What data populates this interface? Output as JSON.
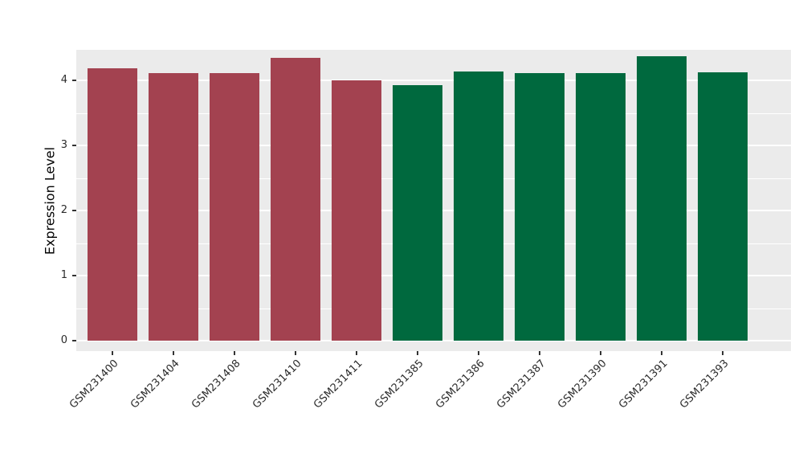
{
  "chart_data": {
    "type": "bar",
    "title": "",
    "xlabel": "",
    "ylabel": "Expression Level",
    "categories": [
      "GSM231400",
      "GSM231404",
      "GSM231408",
      "GSM231410",
      "GSM231411",
      "GSM231385",
      "GSM231386",
      "GSM231387",
      "GSM231390",
      "GSM231391",
      "GSM231393"
    ],
    "values": [
      4.18,
      4.11,
      4.11,
      4.35,
      4.0,
      3.93,
      4.14,
      4.11,
      4.11,
      4.37,
      4.12
    ],
    "bar_colors": [
      "#A34250",
      "#A34250",
      "#A34250",
      "#A34250",
      "#A34250",
      "#00693E",
      "#00693E",
      "#00693E",
      "#00693E",
      "#00693E",
      "#00693E"
    ],
    "groups": [
      {
        "name": "group-red",
        "color": "#A34250",
        "categories": [
          "GSM231400",
          "GSM231404",
          "GSM231408",
          "GSM231410",
          "GSM231411"
        ]
      },
      {
        "name": "group-green",
        "color": "#00693E",
        "categories": [
          "GSM231385",
          "GSM231386",
          "GSM231387",
          "GSM231390",
          "GSM231391",
          "GSM231393"
        ]
      }
    ],
    "yticks": [
      0,
      1,
      2,
      3,
      4
    ],
    "ylim": [
      -0.16,
      4.47
    ],
    "grid": "horizontal white major+minor",
    "legend": "none",
    "panel_background": "#EBEBEB",
    "gridline_color": "#FFFFFF",
    "tick_label_color": "#2b2b2b",
    "x_label_rotation_deg": 45
  }
}
